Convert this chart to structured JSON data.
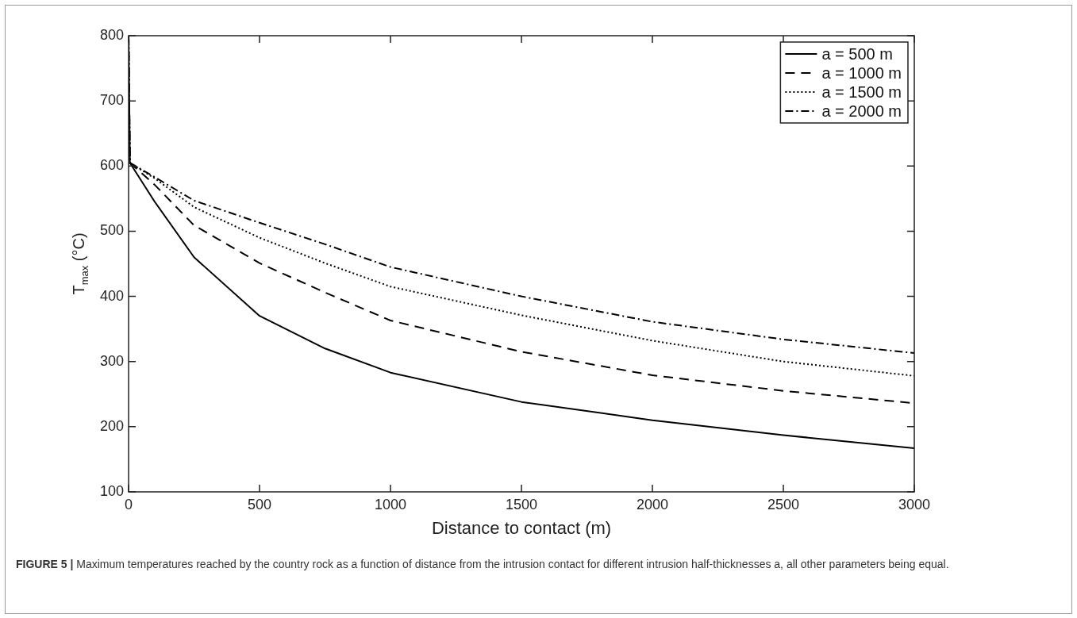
{
  "chart_data": {
    "type": "line",
    "xlabel": "Distance to contact (m)",
    "ylabel": "T$_{max}$ (°C)",
    "x": [
      0,
      5,
      100,
      250,
      500,
      750,
      1000,
      1500,
      2000,
      2500,
      3000
    ],
    "series": [
      {
        "name": "a = 500 m",
        "color": "#000000",
        "line_style": "solid",
        "values": [
          800,
          605,
          545,
          460,
          370,
          320,
          283,
          238,
          210,
          187,
          167
        ]
      },
      {
        "name": "a = 1000 m",
        "color": "#000000",
        "line_style": "dashed",
        "values": [
          800,
          605,
          571,
          509,
          451,
          406,
          363,
          315,
          279,
          255,
          236
        ]
      },
      {
        "name": "a = 1500 m",
        "color": "#000000",
        "line_style": "dotted",
        "values": [
          800,
          605,
          581,
          537,
          490,
          451,
          415,
          371,
          332,
          300,
          278
        ]
      },
      {
        "name": "a = 2000 m",
        "color": "#000000",
        "line_style": "dashdot",
        "values": [
          800,
          605,
          583,
          547,
          513,
          480,
          445,
          400,
          361,
          334,
          313
        ]
      }
    ],
    "xlim": [
      0,
      3000
    ],
    "xticks": [
      0,
      500,
      1000,
      1500,
      2000,
      2500,
      3000
    ],
    "ylim": [
      100,
      800
    ],
    "yticks": [
      100,
      200,
      300,
      400,
      500,
      600,
      700,
      800
    ],
    "grid": false,
    "legend": "top right",
    "marker": "none",
    "annotations": [
      "FIGURE 5 | Maximum temperatures reached by the country rock as a function of distance from the intrusion contact for different intrusion half-thicknesses a, all other parameters being equal."
    ]
  }
}
